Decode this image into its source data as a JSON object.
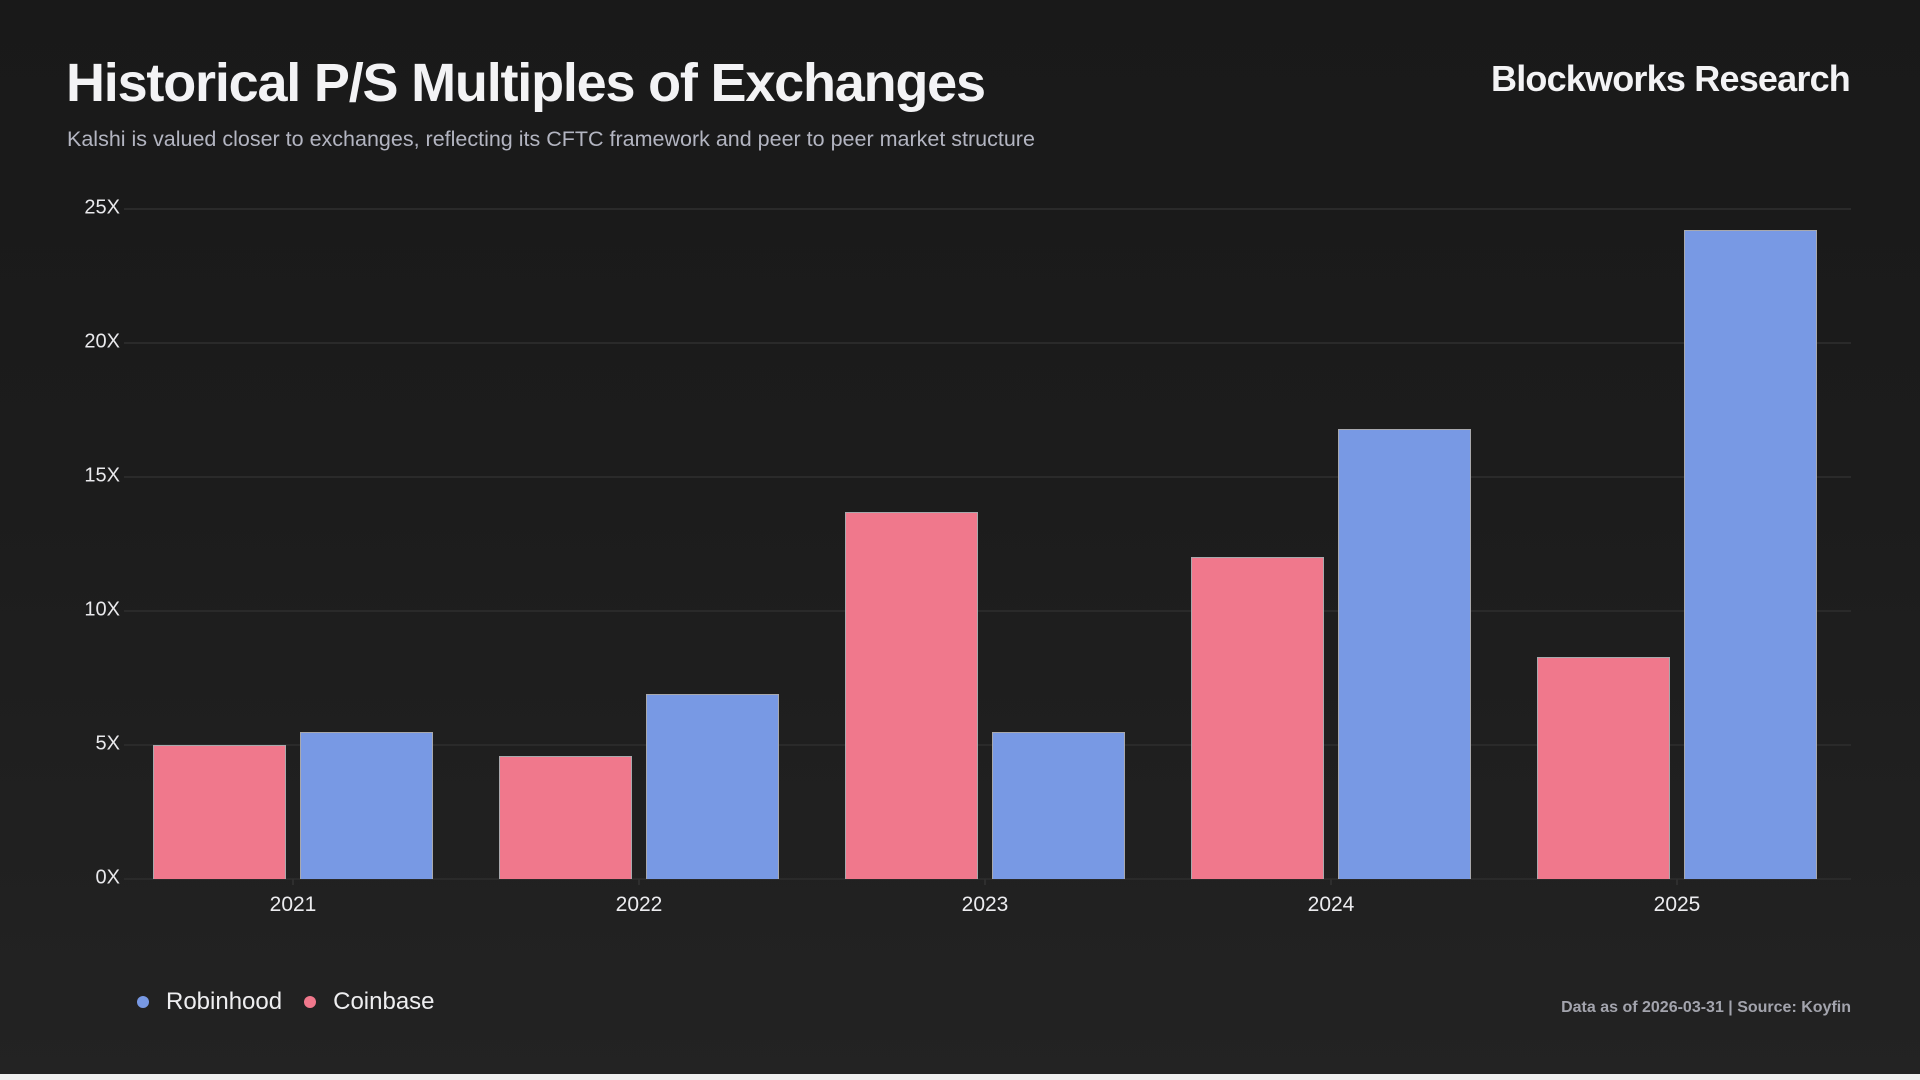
{
  "header": {
    "title": "Historical P/S Multiples of Exchanges",
    "subtitle": "Kalshi is valued closer to exchanges, reflecting its CFTC framework and peer to peer market structure",
    "brand": "Blockworks Research"
  },
  "footer": {
    "source": "Data as of 2026-03-31 | Source: Koyfin"
  },
  "legend": [
    {
      "label": "Robinhood",
      "color": "#7899e4"
    },
    {
      "label": "Coinbase",
      "color": "#f0788c"
    }
  ],
  "chart_data": {
    "type": "bar",
    "title": "Historical P/S Multiples of Exchanges",
    "subtitle": "Kalshi is valued closer to exchanges, reflecting its CFTC framework and peer to peer market structure",
    "xlabel": "",
    "ylabel": "",
    "categories": [
      "2021",
      "2022",
      "2023",
      "2024",
      "2025"
    ],
    "series": [
      {
        "name": "Coinbase",
        "color": "#f0788c",
        "values": [
          5.0,
          4.6,
          13.7,
          12.0,
          8.3
        ]
      },
      {
        "name": "Robinhood",
        "color": "#7899e4",
        "values": [
          5.5,
          6.9,
          5.5,
          16.8,
          24.2
        ]
      }
    ],
    "yticks": [
      "0X",
      "5X",
      "10X",
      "15X",
      "20X",
      "25X"
    ],
    "ylim": [
      0,
      25
    ],
    "grid": true,
    "legend_position": "bottom-left",
    "source": "Data as of 2026-03-31 | Source: Koyfin"
  }
}
